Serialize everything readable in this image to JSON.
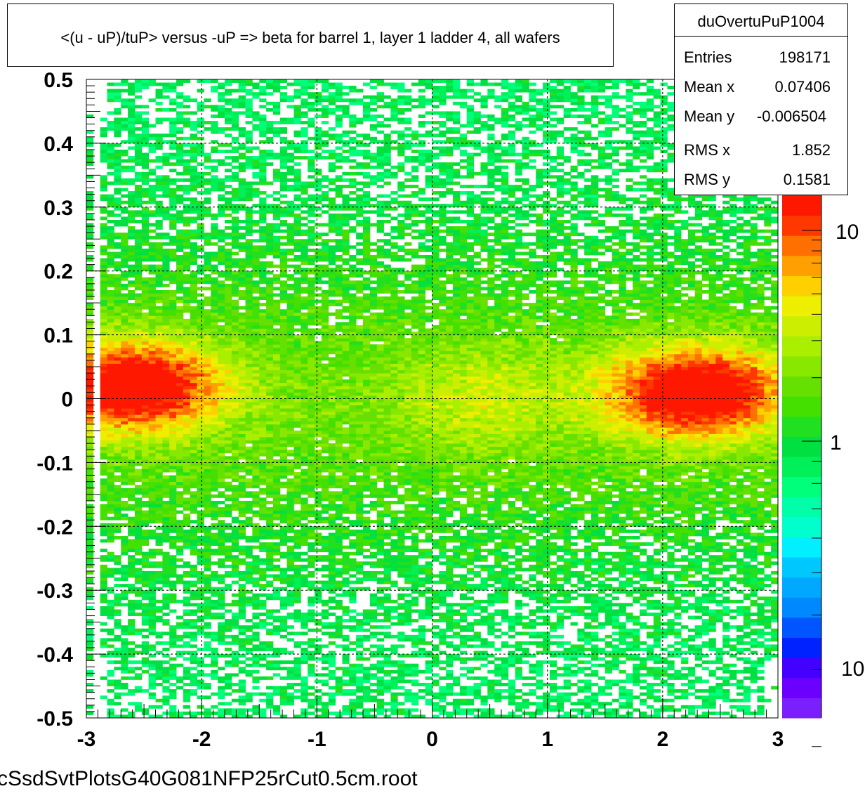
{
  "title": "<(u - uP)/tuP> versus  -uP => beta for barrel 1, layer 1 ladder 4, all wafers",
  "footer": "cSsdSvtPlotsG40G081NFP25rCut0.5cm.root",
  "stats": {
    "name": "duOvertuPuP1004",
    "rows": [
      {
        "label": "Entries",
        "value": "198171"
      },
      {
        "label": "Mean x",
        "value": "0.07406"
      },
      {
        "label": "Mean y",
        "value": "-0.006504"
      },
      {
        "label": "RMS x",
        "value": "1.852"
      },
      {
        "label": "RMS y",
        "value": "0.1581"
      }
    ]
  },
  "chart_data": {
    "type": "heatmap",
    "xlim": [
      -3,
      3
    ],
    "ylim": [
      -0.5,
      0.5
    ],
    "x_ticks": [
      "-3",
      "-2",
      "-1",
      "0",
      "1",
      "2",
      "3"
    ],
    "y_ticks": [
      "-0.5",
      "-0.4",
      "-0.3",
      "-0.2",
      "-0.1",
      "0",
      "0.1",
      "0.2",
      "0.3",
      "0.4",
      "0.5"
    ],
    "colorbar_labels": [
      "10",
      "1",
      "10"
    ],
    "colorbar_scale": "log",
    "grid": true,
    "peak_regions": [
      {
        "x_center": -2.6,
        "y_center": 0.02
      },
      {
        "x_center": 2.3,
        "y_center": 0.01
      }
    ],
    "palette": [
      "#7b1fff",
      "#6c00ff",
      "#4400ff",
      "#0022ff",
      "#0055ff",
      "#0088ff",
      "#00a8ff",
      "#00c8ff",
      "#00f0ff",
      "#00ffcc",
      "#00ffa8",
      "#00ff7a",
      "#00f05a",
      "#00e040",
      "#20e020",
      "#44e000",
      "#66e000",
      "#88e800",
      "#aaee00",
      "#ccee00",
      "#eeee00",
      "#ffd000",
      "#ffa000",
      "#ff7000",
      "#ff3800",
      "#ff1800"
    ]
  }
}
